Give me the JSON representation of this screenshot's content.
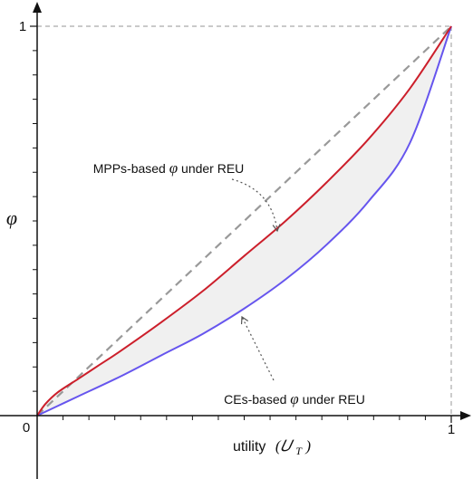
{
  "chart_data": {
    "type": "line",
    "xlabel": "utility",
    "xlabel_math": "(𝑈",
    "xlabel_math_sub": "T",
    "xlabel_math_close": ")",
    "ylabel": "φ",
    "xlim": [
      0,
      1
    ],
    "ylim": [
      0,
      1
    ],
    "ticks": {
      "x_origin": "0",
      "x_one": "1",
      "y_one": "1",
      "minor_x": [
        0.0625,
        0.125,
        0.1875,
        0.25,
        0.3125,
        0.375,
        0.4375,
        0.5,
        0.5625,
        0.625,
        0.6875,
        0.75,
        0.8125,
        0.875,
        0.9375
      ],
      "minor_y": [
        0.0625,
        0.125,
        0.1875,
        0.25,
        0.3125,
        0.375,
        0.4375,
        0.5,
        0.5625,
        0.625,
        0.6875,
        0.75,
        0.8125,
        0.875,
        0.9375
      ]
    },
    "grid": false,
    "series": [
      {
        "key": "diagonal",
        "style": "dashed",
        "color": "#999999",
        "x": [
          0,
          1
        ],
        "y": [
          0,
          1
        ]
      },
      {
        "key": "mpp",
        "style": "solid",
        "color": "#cc1f2b",
        "x": [
          0,
          0.02,
          0.05,
          0.1,
          0.15,
          0.2,
          0.3,
          0.4,
          0.5,
          0.6,
          0.7,
          0.8,
          0.9,
          1.0
        ],
        "y": [
          0,
          0.03,
          0.06,
          0.095,
          0.13,
          0.165,
          0.24,
          0.32,
          0.41,
          0.5,
          0.6,
          0.71,
          0.84,
          1.0
        ]
      },
      {
        "key": "ce",
        "style": "solid",
        "color": "#6655ee",
        "x": [
          0,
          0.05,
          0.1,
          0.2,
          0.3,
          0.4,
          0.5,
          0.6,
          0.7,
          0.8,
          0.9,
          1.0
        ],
        "y": [
          0,
          0.025,
          0.05,
          0.1,
          0.155,
          0.21,
          0.275,
          0.35,
          0.44,
          0.55,
          0.7,
          1.0
        ]
      }
    ],
    "annotations": [
      {
        "key": "mpp_label",
        "text_before": "MPPs-based ",
        "symbol": "φ",
        "text_after": " under REU"
      },
      {
        "key": "ce_label",
        "text_before": "CEs-based ",
        "symbol": "φ",
        "text_after": " under REU"
      }
    ],
    "colors": {
      "axis": "#111111",
      "shade": "#f0f0f0",
      "arrow": "#555555"
    }
  }
}
